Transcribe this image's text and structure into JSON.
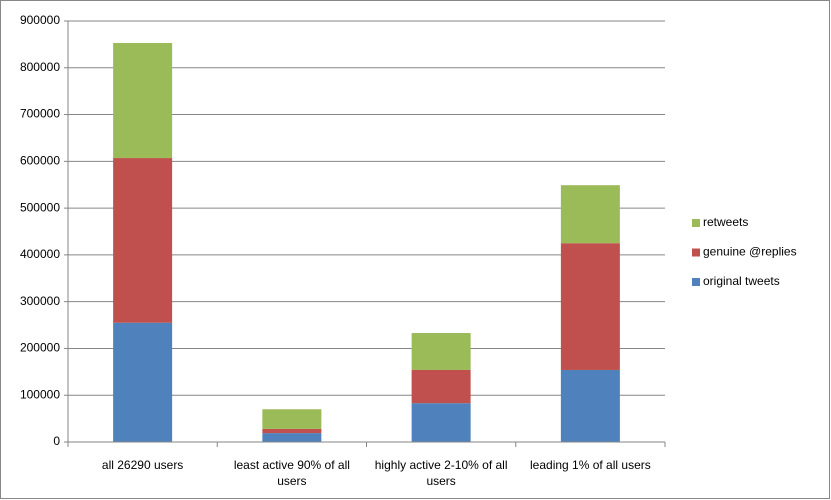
{
  "chart_data": {
    "type": "stacked_bar",
    "categories": [
      "all 26290 users",
      "least active 90% of all users",
      "highly active 2-10% of all users",
      "leading 1% of all users"
    ],
    "series": [
      {
        "name": "original tweets",
        "color": "#4f81bd",
        "values": [
          255000,
          19000,
          83000,
          154000
        ]
      },
      {
        "name": "genuine @replies",
        "color": "#c0504d",
        "values": [
          352000,
          9000,
          71000,
          271000
        ]
      },
      {
        "name": "retweets",
        "color": "#9bbb59",
        "values": [
          246000,
          42000,
          79000,
          124000
        ]
      }
    ],
    "ylim": [
      0,
      900000
    ],
    "yticks": [
      0,
      100000,
      200000,
      300000,
      400000,
      500000,
      600000,
      700000,
      800000,
      900000
    ],
    "grid": true,
    "legend": "right"
  }
}
